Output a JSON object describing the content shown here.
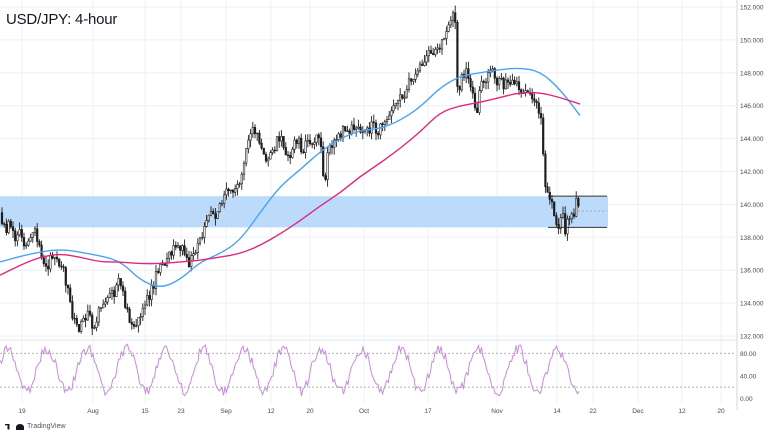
{
  "header": {
    "title": "USD/JPY: 4-hour"
  },
  "brand": {
    "label": "TradingView"
  },
  "colors": {
    "candle": "#1e1e1e",
    "sma_fast": "#4aa3f5",
    "sma_slow": "#e0287d",
    "zone_fill": "#b8d9fb",
    "rsi": "#c78bdc",
    "grid": "#eef0f3",
    "axis_text": "#4a4a4a"
  },
  "chart_data": [
    {
      "type": "candlestick",
      "title": "USD/JPY: 4-hour",
      "y_ticks": [
        "152.000",
        "150.000",
        "148.000",
        "146.000",
        "144.000",
        "142.000",
        "140.000",
        "138.000",
        "136.000",
        "134.000",
        "132.000"
      ],
      "x_ticks": [
        "19",
        "Aug",
        "15",
        "23",
        "Sep",
        "12",
        "20",
        "Oct",
        "17",
        "Nov",
        "14",
        "22",
        "Dec",
        "12",
        "20"
      ],
      "ylim": [
        132,
        152
      ],
      "grid": true,
      "price_path": [
        [
          0,
          139.5
        ],
        [
          3,
          139.0
        ],
        [
          6,
          138.5
        ],
        [
          9,
          138.8
        ],
        [
          12,
          138.2
        ],
        [
          15,
          138.0
        ],
        [
          18,
          138.6
        ],
        [
          21,
          138.4
        ],
        [
          24,
          137.8
        ],
        [
          27,
          137.2
        ],
        [
          30,
          138.0
        ],
        [
          33,
          138.5
        ],
        [
          36,
          138.3
        ],
        [
          39,
          137.5
        ],
        [
          42,
          136.5
        ],
        [
          45,
          135.8
        ],
        [
          48,
          136.2
        ],
        [
          51,
          136.8
        ],
        [
          54,
          137.0
        ],
        [
          57,
          136.5
        ],
        [
          60,
          136.0
        ],
        [
          64,
          135.8
        ],
        [
          67,
          135.0
        ],
        [
          70,
          134.2
        ],
        [
          73,
          133.2
        ],
        [
          76,
          132.6
        ],
        [
          79,
          132.1
        ],
        [
          82,
          133.0
        ],
        [
          85,
          132.7
        ],
        [
          88,
          133.5
        ],
        [
          91,
          132.8
        ],
        [
          94,
          132.5
        ],
        [
          97,
          133.2
        ],
        [
          100,
          134.0
        ],
        [
          103,
          133.6
        ],
        [
          106,
          134.3
        ],
        [
          109,
          134.8
        ],
        [
          112,
          135.0
        ],
        [
          115,
          134.6
        ],
        [
          118,
          135.2
        ],
        [
          121,
          135.0
        ],
        [
          124,
          134.4
        ],
        [
          127,
          133.5
        ],
        [
          130,
          132.8
        ],
        [
          133,
          132.3
        ],
        [
          136,
          132.6
        ],
        [
          139,
          133.0
        ],
        [
          142,
          133.4
        ],
        [
          145,
          133.8
        ],
        [
          148,
          134.3
        ],
        [
          151,
          134.8
        ],
        [
          154,
          135.2
        ],
        [
          157,
          135.8
        ],
        [
          160,
          136.2
        ],
        [
          163,
          136.7
        ],
        [
          166,
          136.4
        ],
        [
          169,
          136.9
        ],
        [
          172,
          137.3
        ],
        [
          175,
          137.5
        ],
        [
          178,
          137.2
        ],
        [
          181,
          137.6
        ],
        [
          184,
          137.0
        ],
        [
          187,
          136.7
        ],
        [
          190,
          136.4
        ],
        [
          193,
          136.9
        ],
        [
          196,
          137.3
        ],
        [
          199,
          137.6
        ],
        [
          202,
          138.2
        ],
        [
          205,
          138.7
        ],
        [
          208,
          139.1
        ],
        [
          211,
          139.4
        ],
        [
          214,
          139.3
        ],
        [
          217,
          139.6
        ],
        [
          220,
          139.9
        ],
        [
          223,
          140.1
        ],
        [
          226,
          140.6
        ],
        [
          229,
          140.8
        ],
        [
          232,
          141.0
        ],
        [
          235,
          140.9
        ],
        [
          238,
          141.2
        ],
        [
          241,
          141.8
        ],
        [
          244,
          142.6
        ],
        [
          247,
          143.5
        ],
        [
          250,
          144.3
        ],
        [
          253,
          144.8
        ],
        [
          256,
          144.4
        ],
        [
          259,
          143.6
        ],
        [
          262,
          143.2
        ],
        [
          265,
          142.8
        ],
        [
          268,
          142.7
        ],
        [
          271,
          143.3
        ],
        [
          274,
          143.5
        ],
        [
          277,
          143.9
        ],
        [
          280,
          144.2
        ],
        [
          283,
          143.7
        ],
        [
          286,
          143.3
        ],
        [
          289,
          143.0
        ],
        [
          292,
          143.4
        ],
        [
          295,
          143.6
        ],
        [
          298,
          143.8
        ],
        [
          301,
          143.5
        ],
        [
          304,
          143.4
        ],
        [
          307,
          143.7
        ],
        [
          310,
          143.9
        ],
        [
          313,
          144.0
        ],
        [
          316,
          144.2
        ],
        [
          319,
          144.4
        ],
        [
          321,
          143.6
        ],
        [
          323,
          141.6
        ],
        [
          325,
          141.2
        ],
        [
          327,
          142.8
        ],
        [
          330,
          143.5
        ],
        [
          333,
          143.9
        ],
        [
          336,
          144.1
        ],
        [
          339,
          144.3
        ],
        [
          342,
          144.5
        ],
        [
          345,
          144.6
        ],
        [
          348,
          144.4
        ],
        [
          351,
          144.5
        ],
        [
          354,
          144.6
        ],
        [
          357,
          144.5
        ],
        [
          360,
          144.4
        ],
        [
          363,
          144.2
        ],
        [
          366,
          144.3
        ],
        [
          369,
          144.6
        ],
        [
          372,
          144.8
        ],
        [
          375,
          144.5
        ],
        [
          378,
          144.4
        ],
        [
          381,
          144.6
        ],
        [
          384,
          144.9
        ],
        [
          387,
          145.2
        ],
        [
          390,
          145.6
        ],
        [
          393,
          145.7
        ],
        [
          396,
          146.0
        ],
        [
          399,
          146.2
        ],
        [
          402,
          146.6
        ],
        [
          405,
          146.9
        ],
        [
          408,
          147.4
        ],
        [
          411,
          147.7
        ],
        [
          414,
          147.5
        ],
        [
          417,
          147.9
        ],
        [
          420,
          148.3
        ],
        [
          423,
          148.7
        ],
        [
          426,
          148.9
        ],
        [
          429,
          149.2
        ],
        [
          432,
          149.4
        ],
        [
          435,
          149.1
        ],
        [
          438,
          149.6
        ],
        [
          441,
          149.8
        ],
        [
          444,
          150.0
        ],
        [
          447,
          150.3
        ],
        [
          450,
          150.8
        ],
        [
          452,
          151.2
        ],
        [
          454,
          151.5
        ],
        [
          456,
          151.0
        ],
        [
          457,
          147.3
        ],
        [
          459,
          146.6
        ],
        [
          461,
          148.0
        ],
        [
          463,
          148.3
        ],
        [
          465,
          147.6
        ],
        [
          467,
          148.2
        ],
        [
          469,
          147.2
        ],
        [
          471,
          146.9
        ],
        [
          473,
          146.4
        ],
        [
          475,
          145.8
        ],
        [
          477,
          145.7
        ],
        [
          479,
          146.6
        ],
        [
          481,
          147.2
        ],
        [
          483,
          147.0
        ],
        [
          485,
          147.2
        ],
        [
          487,
          147.5
        ],
        [
          489,
          148.1
        ],
        [
          491,
          148.2
        ],
        [
          493,
          148.0
        ],
        [
          495,
          147.7
        ],
        [
          497,
          147.2
        ],
        [
          499,
          147.7
        ],
        [
          501,
          147.6
        ],
        [
          503,
          147.3
        ],
        [
          505,
          147.5
        ],
        [
          507,
          147.6
        ],
        [
          509,
          147.4
        ],
        [
          511,
          147.1
        ],
        [
          513,
          147.4
        ],
        [
          515,
          147.7
        ],
        [
          517,
          147.4
        ],
        [
          519,
          146.8
        ],
        [
          521,
          146.7
        ],
        [
          523,
          146.4
        ],
        [
          525,
          146.6
        ],
        [
          527,
          146.9
        ],
        [
          529,
          146.7
        ],
        [
          531,
          146.6
        ],
        [
          533,
          146.3
        ],
        [
          535,
          146.2
        ],
        [
          537,
          145.9
        ],
        [
          539,
          145.8
        ],
        [
          541,
          145.6
        ],
        [
          543,
          143.6
        ],
        [
          545,
          141.4
        ],
        [
          547,
          140.8
        ],
        [
          549,
          140.3
        ],
        [
          551,
          140.1
        ],
        [
          553,
          139.7
        ],
        [
          555,
          139.1
        ],
        [
          557,
          138.9
        ],
        [
          559,
          138.5
        ],
        [
          561,
          139.4
        ],
        [
          563,
          139.3
        ],
        [
          565,
          138.5
        ],
        [
          567,
          138.7
        ],
        [
          569,
          139.2
        ],
        [
          571,
          139.3
        ],
        [
          573,
          139.0
        ],
        [
          575,
          139.6
        ],
        [
          577,
          140.3
        ],
        [
          579,
          140.2
        ]
      ],
      "series": [
        {
          "name": "",
          "kind": "moving-average",
          "color": "#4aa3f5",
          "points": [
            [
              0,
              136.5
            ],
            [
              30,
              137.0
            ],
            [
              60,
              137.3
            ],
            [
              90,
              137.0
            ],
            [
              120,
              136.6
            ],
            [
              140,
              135.4
            ],
            [
              160,
              134.9
            ],
            [
              180,
              135.4
            ],
            [
              200,
              136.5
            ],
            [
              220,
              137.0
            ],
            [
              240,
              137.8
            ],
            [
              260,
              139.5
            ],
            [
              280,
              141.1
            ],
            [
              300,
              142.1
            ],
            [
              320,
              143.2
            ],
            [
              340,
              144.0
            ],
            [
              360,
              144.5
            ],
            [
              380,
              144.6
            ],
            [
              400,
              145.1
            ],
            [
              420,
              145.9
            ],
            [
              440,
              147.1
            ],
            [
              460,
              147.8
            ],
            [
              480,
              148.0
            ],
            [
              500,
              148.2
            ],
            [
              520,
              148.3
            ],
            [
              540,
              148.1
            ],
            [
              560,
              147.0
            ],
            [
              580,
              145.4
            ]
          ]
        },
        {
          "name": "",
          "kind": "moving-average",
          "color": "#e0287d",
          "points": [
            [
              0,
              135.7
            ],
            [
              20,
              136.3
            ],
            [
              40,
              136.8
            ],
            [
              60,
              137.0
            ],
            [
              80,
              136.8
            ],
            [
              100,
              136.5
            ],
            [
              120,
              136.5
            ],
            [
              140,
              136.4
            ],
            [
              160,
              136.4
            ],
            [
              180,
              136.5
            ],
            [
              200,
              136.6
            ],
            [
              220,
              136.8
            ],
            [
              240,
              137.0
            ],
            [
              260,
              137.5
            ],
            [
              280,
              138.2
            ],
            [
              300,
              139.0
            ],
            [
              320,
              139.9
            ],
            [
              340,
              140.7
            ],
            [
              360,
              141.7
            ],
            [
              380,
              142.5
            ],
            [
              400,
              143.4
            ],
            [
              420,
              144.4
            ],
            [
              440,
              145.6
            ],
            [
              460,
              146.0
            ],
            [
              480,
              146.2
            ],
            [
              500,
              146.5
            ],
            [
              520,
              146.8
            ],
            [
              540,
              146.8
            ],
            [
              560,
              146.5
            ],
            [
              580,
              146.1
            ]
          ]
        }
      ],
      "zone": {
        "low": 138.6,
        "high": 140.5,
        "label": ""
      },
      "range_box": {
        "low": 138.6,
        "high": 140.5,
        "mid": 139.6
      }
    },
    {
      "type": "line",
      "name": "",
      "y_ticks": [
        "80.00",
        "40.00",
        "0.00"
      ],
      "ylim": [
        -10,
        100
      ],
      "overbought": 80,
      "oversold": 20,
      "seed": 1427
    }
  ]
}
